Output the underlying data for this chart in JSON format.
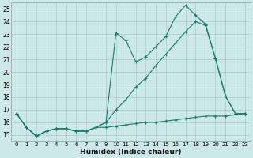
{
  "xlabel": "Humidex (Indice chaleur)",
  "bg_color": "#cce8e8",
  "grid_color": "#aacccc",
  "line_color": "#1a7a6e",
  "xlim": [
    -0.5,
    23.5
  ],
  "ylim": [
    14.5,
    25.5
  ],
  "yticks": [
    15,
    16,
    17,
    18,
    19,
    20,
    21,
    22,
    23,
    24,
    25
  ],
  "xticks": [
    0,
    1,
    2,
    3,
    4,
    5,
    6,
    7,
    8,
    9,
    10,
    11,
    12,
    13,
    14,
    15,
    16,
    17,
    18,
    19,
    20,
    21,
    22,
    23
  ],
  "line1_x": [
    0,
    1,
    2,
    3,
    4,
    5,
    6,
    7,
    8,
    9,
    10,
    11,
    12,
    13,
    14,
    15,
    16,
    17,
    18,
    19,
    20,
    21,
    22,
    23
  ],
  "line1_y": [
    16.7,
    15.6,
    14.9,
    15.3,
    15.5,
    15.5,
    15.3,
    15.3,
    15.6,
    15.6,
    15.7,
    15.8,
    15.9,
    16.0,
    16.0,
    16.1,
    16.2,
    16.3,
    16.4,
    16.5,
    16.5,
    16.5,
    16.6,
    16.7
  ],
  "line2_x": [
    0,
    1,
    2,
    3,
    4,
    5,
    6,
    7,
    8,
    9,
    10,
    11,
    12,
    13,
    14,
    15,
    16,
    17,
    18,
    19,
    20,
    21,
    22,
    23
  ],
  "line2_y": [
    16.7,
    15.6,
    14.9,
    15.3,
    15.5,
    15.5,
    15.3,
    15.3,
    15.6,
    16.0,
    17.0,
    17.8,
    18.8,
    19.5,
    20.5,
    21.4,
    22.3,
    23.2,
    24.0,
    23.7,
    21.1,
    18.1,
    16.7,
    16.7
  ],
  "line3_x": [
    0,
    1,
    2,
    3,
    4,
    5,
    6,
    7,
    8,
    9,
    10,
    11,
    12,
    13,
    14,
    15,
    16,
    17,
    18,
    19,
    20,
    21,
    22,
    23
  ],
  "line3_y": [
    16.7,
    15.6,
    14.9,
    15.3,
    15.5,
    15.5,
    15.3,
    15.3,
    15.6,
    16.0,
    23.1,
    22.5,
    20.8,
    21.2,
    22.0,
    22.8,
    24.4,
    25.3,
    24.5,
    23.8,
    21.1,
    18.1,
    16.7,
    16.7
  ]
}
